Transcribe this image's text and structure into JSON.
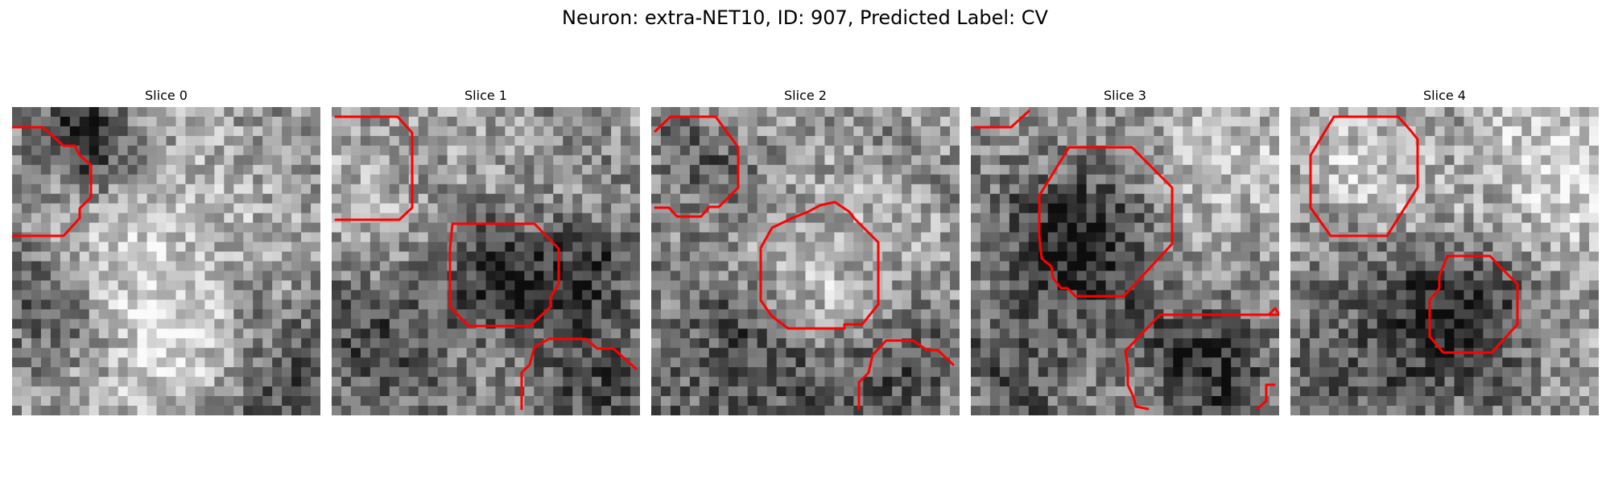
{
  "figure": {
    "title": "Neuron: extra-NET10, ID: 907, Predicted Label: CV",
    "overlay_color": "#ff0000"
  },
  "panels": [
    {
      "title": "Slice 0",
      "image": "grayscale-em-slice"
    },
    {
      "title": "Slice 1",
      "image": "grayscale-em-slice"
    },
    {
      "title": "Slice 2",
      "image": "grayscale-em-slice"
    },
    {
      "title": "Slice 3",
      "image": "grayscale-em-slice"
    },
    {
      "title": "Slice 4",
      "image": "grayscale-em-slice"
    }
  ]
}
